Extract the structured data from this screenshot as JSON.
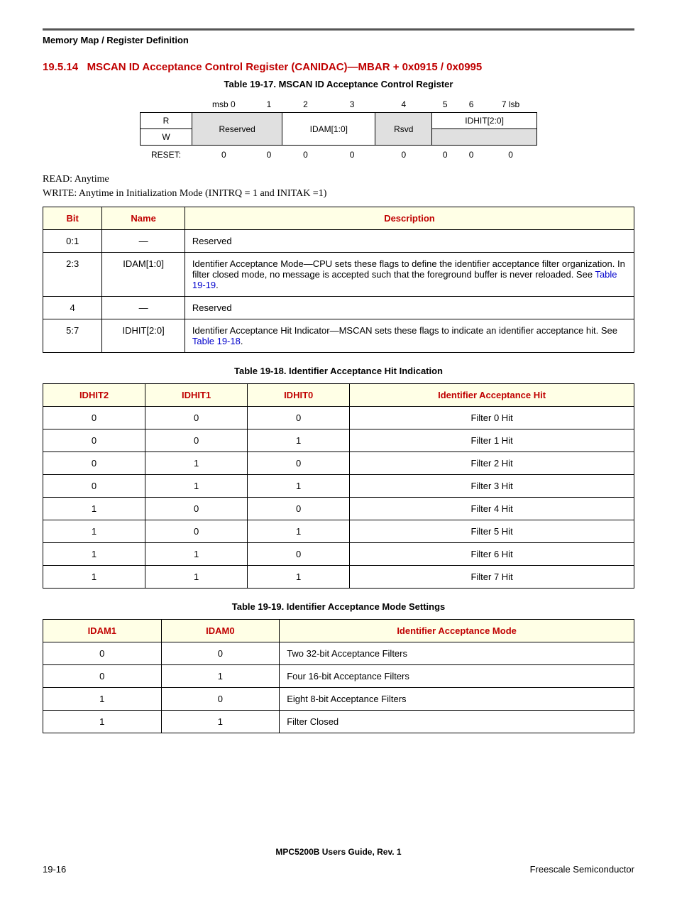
{
  "chapter_title": "Memory Map / Register Definition",
  "section_num": "19.5.14",
  "section_title": "MSCAN ID Acceptance Control Register (CANIDAC)—MBAR + 0x0915 / 0x0995",
  "table17_caption": "Table 19-17. MSCAN ID Acceptance Control Register",
  "reg": {
    "bits": [
      "msb 0",
      "1",
      "2",
      "3",
      "4",
      "5",
      "6",
      "7 lsb"
    ],
    "r": "R",
    "w": "W",
    "reserved": "Reserved",
    "idam": "IDAM[1:0]",
    "rsvd": "Rsvd",
    "idhit": "IDHIT[2:0]",
    "reset_label": "RESET:",
    "reset_vals": [
      "0",
      "0",
      "0",
      "0",
      "0",
      "0",
      "0",
      "0"
    ]
  },
  "read_note": "READ: Anytime",
  "write_note": "WRITE: Anytime in Initialization Mode (INITRQ = 1 and INITAK =1)",
  "main_table": {
    "headers": [
      "Bit",
      "Name",
      "Description"
    ],
    "rows": [
      {
        "bit": "0:1",
        "name": "—",
        "desc": "Reserved"
      },
      {
        "bit": "2:3",
        "name": "IDAM[1:0]",
        "desc_pre": "Identifier Acceptance Mode—CPU sets these flags to define the identifier acceptance filter organization. In filter closed mode, no message is accepted such that the foreground buffer is never reloaded. See ",
        "xref": "Table 19-19",
        "desc_post": "."
      },
      {
        "bit": "4",
        "name": "—",
        "desc": "Reserved"
      },
      {
        "bit": "5:7",
        "name": "IDHIT[2:0]",
        "desc_pre": "Identifier Acceptance Hit Indicator—MSCAN sets these flags to indicate an identifier acceptance hit. See ",
        "xref": "Table 19-18",
        "desc_post": "."
      }
    ]
  },
  "table18_caption": "Table 19-18. Identifier Acceptance Hit Indication",
  "table18": {
    "headers": [
      "IDHIT2",
      "IDHIT1",
      "IDHIT0",
      "Identifier Acceptance Hit"
    ],
    "rows": [
      [
        "0",
        "0",
        "0",
        "Filter 0 Hit"
      ],
      [
        "0",
        "0",
        "1",
        "Filter 1 Hit"
      ],
      [
        "0",
        "1",
        "0",
        "Filter 2 Hit"
      ],
      [
        "0",
        "1",
        "1",
        "Filter 3 Hit"
      ],
      [
        "1",
        "0",
        "0",
        "Filter 4 Hit"
      ],
      [
        "1",
        "0",
        "1",
        "Filter 5 Hit"
      ],
      [
        "1",
        "1",
        "0",
        "Filter 6 Hit"
      ],
      [
        "1",
        "1",
        "1",
        "Filter 7 Hit"
      ]
    ]
  },
  "table19_caption": "Table 19-19. Identifier Acceptance Mode Settings",
  "table19": {
    "headers": [
      "IDAM1",
      "IDAM0",
      "Identifier Acceptance Mode"
    ],
    "rows": [
      [
        "0",
        "0",
        "Two  32-bit Acceptance Filters"
      ],
      [
        "0",
        "1",
        "Four  16-bit Acceptance Filters"
      ],
      [
        "1",
        "0",
        "Eight  8-bit Acceptance Filters"
      ],
      [
        "1",
        "1",
        "Filter Closed"
      ]
    ]
  },
  "footer_center": "MPC5200B Users Guide, Rev. 1",
  "footer_left": "19-16",
  "footer_right": "Freescale Semiconductor"
}
